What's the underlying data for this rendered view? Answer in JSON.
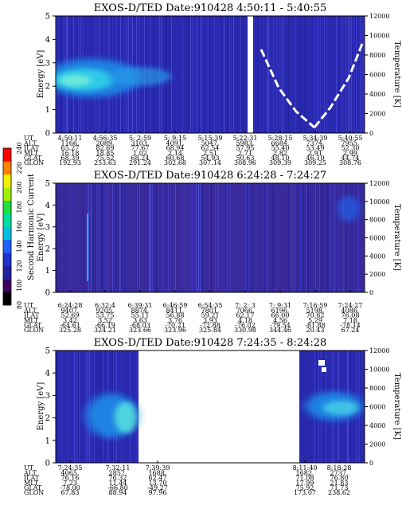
{
  "figure": {
    "energy_label": "Energy [eV]",
    "temperature_label": "Temperature [K]",
    "colorbar_label": "Second Harmonic Current"
  },
  "colorbar": {
    "ticks": [
      80,
      100,
      120,
      140,
      160,
      180,
      200,
      220,
      240
    ],
    "colors": [
      "#000000",
      "#400060",
      "#2020a0",
      "#2030d0",
      "#2060ff",
      "#00c0e0",
      "#00e0a0",
      "#20e040",
      "#a0f000",
      "#f0f000",
      "#ff8000",
      "#ff0000"
    ]
  },
  "chart_data": [
    {
      "type": "heatmap",
      "title": "EXOS-D/TED   Date:910428  4:50:11 - 5:40:55",
      "ylabel": "Energy [eV]",
      "y2label": "Temperature [K]",
      "ylim": [
        0,
        5
      ],
      "y2lim": [
        0,
        12000
      ],
      "yticks": [
        0,
        1,
        2,
        3,
        4,
        5
      ],
      "y2ticks": [
        0,
        2000,
        4000,
        6000,
        8000,
        10000,
        12000
      ],
      "row_labels": [
        "UT",
        "ALT",
        "ILAT",
        "MLT",
        "GLAT",
        "GLON"
      ],
      "columns": [
        {
          "UT": "4:50:11",
          "ALT": "1166.",
          "ILAT": "65.27",
          "MLT": "16.18",
          "GLAT": "68.39",
          "GLON": "192.93"
        },
        {
          "UT": "4:56:35",
          "ALT": "2089.",
          "ILAT": "82.69",
          "MLT": "18.85",
          "GLAT": "75.52",
          "GLON": "253.63"
        },
        {
          "UT": "5: 2:59",
          "ALT": "3103.",
          "ILAT": "77.67",
          "MLT": "1.02",
          "GLAT": "68.24",
          "GLON": "291.24"
        },
        {
          "UT": "5: 9:15",
          "ALT": "4091.",
          "ILAT": "68.94",
          "MLT": "2.14",
          "GLAT": "60.68",
          "GLON": "302.68"
        },
        {
          "UT": "5:15:39",
          "ALT": "5047.",
          "ILAT": "62.54",
          "MLT": "2.51",
          "GLAT": "54.93",
          "GLON": "307.14"
        },
        {
          "UT": "5:22:31",
          "ALT": "5983.",
          "ILAT": "57.95",
          "MLT": "2.71",
          "GLAT": "50.63",
          "GLON": "308.96"
        },
        {
          "UT": "5:28:15",
          "ALT": "6684.",
          "ILAT": "55.40",
          "MLT": "2.82",
          "GLAT": "48.10",
          "GLON": "309.39"
        },
        {
          "UT": "5:34:39",
          "ALT": "7374.",
          "ILAT": "53.49",
          "MLT": "2.91",
          "GLAT": "46.10",
          "GLON": "309.25"
        },
        {
          "UT": "5:40:55",
          "ALT": "7955.",
          "ILAT": "52.30",
          "MLT": "2.99",
          "GLAT": "44.74",
          "GLON": "308.76"
        }
      ]
    },
    {
      "type": "heatmap",
      "title": "EXOS-D/TED   Date:910428  6:24:28 - 7:24:27",
      "ylabel": "Energy [eV]",
      "y2label": "Temperature [K]",
      "ylim": [
        0,
        5
      ],
      "y2lim": [
        0,
        12000
      ],
      "yticks": [
        0,
        1,
        2,
        3,
        4,
        5
      ],
      "y2ticks": [
        0,
        2000,
        4000,
        6000,
        8000,
        10000,
        12000
      ],
      "row_labels": [
        "UT",
        "ALT",
        "ILAT",
        "MLT",
        "GLAT",
        "GLON"
      ],
      "columns": [
        {
          "UT": "6:24:28",
          "ALT": "9407.",
          "ILAT": "52.69",
          "MLT": "3.42",
          "GLAT": "-64.61",
          "GLON": "325.28"
        },
        {
          "UT": "6:32:4",
          "ALT": "9205.",
          "ILAT": "53.75",
          "MLT": "3.52",
          "GLAT": "-66.19",
          "GLON": "324.21"
        },
        {
          "UT": "6:39:31",
          "ALT": "8874.",
          "ILAT": "55.11",
          "MLT": "3.63",
          "GLAT": "-68.03",
          "GLON": "323.66"
        },
        {
          "UT": "6:46:59",
          "ALT": "8411.",
          "ILAT": "56.88",
          "MLT": "3.76",
          "GLAT": "-70.21",
          "GLON": "323.96"
        },
        {
          "UT": "6:54:35",
          "ALT": "7801.",
          "ILAT": "59.21",
          "MLT": "3.93",
          "GLAT": "-72.88",
          "GLON": "325.84"
        },
        {
          "UT": "7: 2: 3",
          "ALT": "7066.",
          "ILAT": "62.17",
          "MLT": "4.18",
          "GLAT": "-76.02",
          "GLON": "330.98"
        },
        {
          "UT": "7: 9:31",
          "ALT": "6196.",
          "ILAT": "66.00",
          "MLT": "4.56",
          "GLAT": "-79.54",
          "GLON": "344.46"
        },
        {
          "UT": "7:16:59",
          "ALT": "5198.",
          "ILAT": "70.82",
          "MLT": "5.29",
          "GLAT": "-81.88",
          "GLON": "20.43"
        },
        {
          "UT": "7:24:27",
          "ALT": "4086.",
          "ILAT": "76.08",
          "MLT": "7.18",
          "GLAT": "-78.14",
          "GLON": "67.24"
        }
      ]
    },
    {
      "type": "heatmap",
      "title": "EXOS-D/TED   Date:910428  7:24:35 - 8:24:28",
      "ylabel": "Energy [eV]",
      "y2label": "Temperature [K]",
      "ylim": [
        0,
        5
      ],
      "y2lim": [
        0,
        12000
      ],
      "yticks": [
        0,
        1,
        2,
        3,
        4,
        5
      ],
      "y2ticks": [
        0,
        2000,
        4000,
        6000,
        8000,
        10000,
        12000
      ],
      "row_labels": [
        "UT",
        "ALT",
        "ILAT",
        "MLT",
        "GLAT",
        "GLON"
      ],
      "columns": [
        {
          "UT": "7:24:35",
          "ALT": "4065.",
          "ILAT": "76.16",
          "MLT": "7.23",
          "GLAT": "-78.00",
          "GLON": "67.83"
        },
        {
          "UT": "7:32:11",
          "ALT": "2857.",
          "ILAT": "76.32",
          "MLT": "11.44",
          "GLAT": "-66.80",
          "GLON": "88.94"
        },
        {
          "UT": "7:39:39",
          "ALT": "1688.",
          "ILAT": "62.47",
          "MLT": "13.70",
          "GLAT": "-49.27",
          "GLON": "97.96"
        },
        {
          "UT": "8:11:40",
          "ALT": "1682.",
          "ILAT": "71.08",
          "MLT": "17.99",
          "GLAT": "75.92",
          "GLON": "173.07"
        },
        {
          "UT": "8:18:28",
          "ALT": "2737.",
          "ILAT": "76.80",
          "MLT": "21.83",
          "GLAT": "71.73",
          "GLON": "238.62"
        }
      ]
    }
  ]
}
